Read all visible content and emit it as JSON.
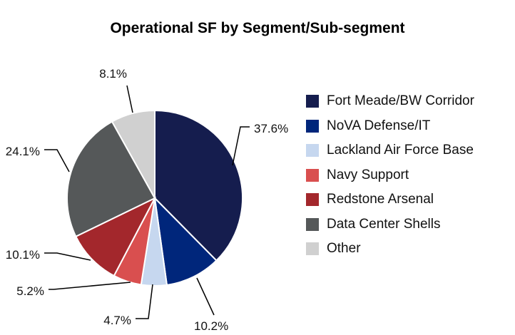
{
  "chart_data": {
    "type": "pie",
    "title": "Operational SF by Segment/Sub-segment",
    "start_angle": "top",
    "direction": "clockwise",
    "legend_position": "right",
    "slices": [
      {
        "name": "Fort Meade/BW Corridor",
        "value": 37.6,
        "label": "37.6%",
        "color": "#151d4e"
      },
      {
        "name": "NoVA Defense/IT",
        "value": 10.2,
        "label": "10.2%",
        "color": "#00267b"
      },
      {
        "name": "Lackland Air Force Base",
        "value": 4.7,
        "label": "4.7%",
        "color": "#c6d7ef"
      },
      {
        "name": "Navy Support",
        "value": 5.2,
        "label": "5.2%",
        "color": "#d94f4f"
      },
      {
        "name": "Redstone Arsenal",
        "value": 10.1,
        "label": "10.1%",
        "color": "#a3272c"
      },
      {
        "name": "Data Center Shells",
        "value": 24.1,
        "label": "24.1%",
        "color": "#555859"
      },
      {
        "name": "Other",
        "value": 8.1,
        "label": "8.1%",
        "color": "#d0d0d0"
      }
    ]
  }
}
